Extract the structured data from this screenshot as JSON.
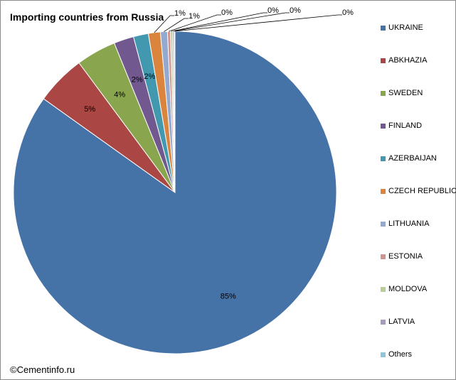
{
  "chart_data": {
    "type": "pie",
    "title": "Importing countries from Russia",
    "legend_position": "right",
    "series": [
      {
        "label": "UKRAINE",
        "value": 85,
        "display": "85%",
        "color": "#4572A7"
      },
      {
        "label": "ABKHAZIA",
        "value": 5,
        "display": "5%",
        "color": "#AA4643"
      },
      {
        "label": "SWEDEN",
        "value": 4,
        "display": "4%",
        "color": "#89A54E"
      },
      {
        "label": "FINLAND",
        "value": 2,
        "display": "2%",
        "color": "#71588F"
      },
      {
        "label": "AZERBAIJAN",
        "value": 1.5,
        "display": "2%",
        "color": "#4198AF"
      },
      {
        "label": "CZECH REPUBLIC",
        "value": 1.2,
        "display": "1%",
        "color": "#DB843D"
      },
      {
        "label": "LITHUANIA",
        "value": 0.7,
        "display": "1%",
        "color": "#93A9CF"
      },
      {
        "label": "ESTONIA",
        "value": 0.3,
        "display": "0%",
        "color": "#D19392"
      },
      {
        "label": "MOLDOVA",
        "value": 0.2,
        "display": "0%",
        "color": "#B9CD96"
      },
      {
        "label": "LATVIA",
        "value": 0.15,
        "display": "0%",
        "color": "#A99BBD"
      },
      {
        "label": "Others",
        "value": 0.1,
        "display": "0%",
        "color": "#92C5D5"
      }
    ]
  },
  "footer": {
    "copyright": "©Cementinfo.ru"
  }
}
